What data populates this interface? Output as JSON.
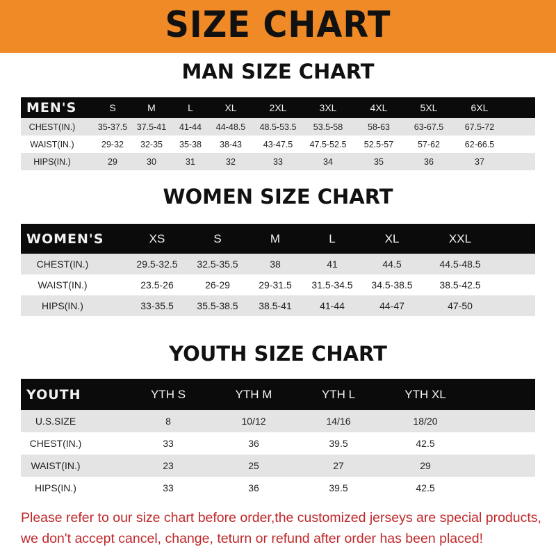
{
  "banner": {
    "title": "SIZE CHART",
    "color": "#ef8a26"
  },
  "men": {
    "title": "MAN SIZE CHART",
    "header": [
      "MEN'S",
      "S",
      "M",
      "L",
      "XL",
      "2XL",
      "3XL",
      "4XL",
      "5XL",
      "6XL"
    ],
    "rows": [
      [
        "CHEST(IN.)",
        "35-37.5",
        "37.5-41",
        "41-44",
        "44-48.5",
        "48.5-53.5",
        "53.5-58",
        "58-63",
        "63-67.5",
        "67.5-72"
      ],
      [
        "WAIST(IN.)",
        "29-32",
        "32-35",
        "35-38",
        "38-43",
        "43-47.5",
        "47.5-52.5",
        "52.5-57",
        "57-62",
        "62-66.5"
      ],
      [
        "HIPS(IN.)",
        "29",
        "30",
        "31",
        "32",
        "33",
        "34",
        "35",
        "36",
        "37"
      ]
    ]
  },
  "women": {
    "title": "WOMEN SIZE CHART",
    "header": [
      "WOMEN'S",
      "XS",
      "S",
      "M",
      "L",
      "XL",
      "XXL"
    ],
    "rows": [
      [
        "CHEST(IN.)",
        "29.5-32.5",
        "32.5-35.5",
        "38",
        "41",
        "44.5",
        "44.5-48.5"
      ],
      [
        "WAIST(IN.)",
        "23.5-26",
        "26-29",
        "29-31.5",
        "31.5-34.5",
        "34.5-38.5",
        "38.5-42.5"
      ],
      [
        "HIPS(IN.)",
        "33-35.5",
        "35.5-38.5",
        "38.5-41",
        "41-44",
        "44-47",
        "47-50"
      ]
    ]
  },
  "youth": {
    "title": "YOUTH SIZE CHART",
    "header": [
      "YOUTH",
      "YTH S",
      "YTH M",
      "YTH L",
      "YTH XL"
    ],
    "rows": [
      [
        "U.S.SIZE",
        "8",
        "10/12",
        "14/16",
        "18/20"
      ],
      [
        "CHEST(IN.)",
        "33",
        "36",
        "39.5",
        "42.5"
      ],
      [
        "WAIST(IN.)",
        "23",
        "25",
        "27",
        "29"
      ],
      [
        "HIPS(IN.)",
        "33",
        "36",
        "39.5",
        "42.5"
      ]
    ]
  },
  "notice": {
    "line1": "Please refer to our size chart before order,the customized jerseys are special products,",
    "line2": "we don't accept cancel, change, teturn or refund after order has been placed!",
    "color": "#c0282a"
  }
}
